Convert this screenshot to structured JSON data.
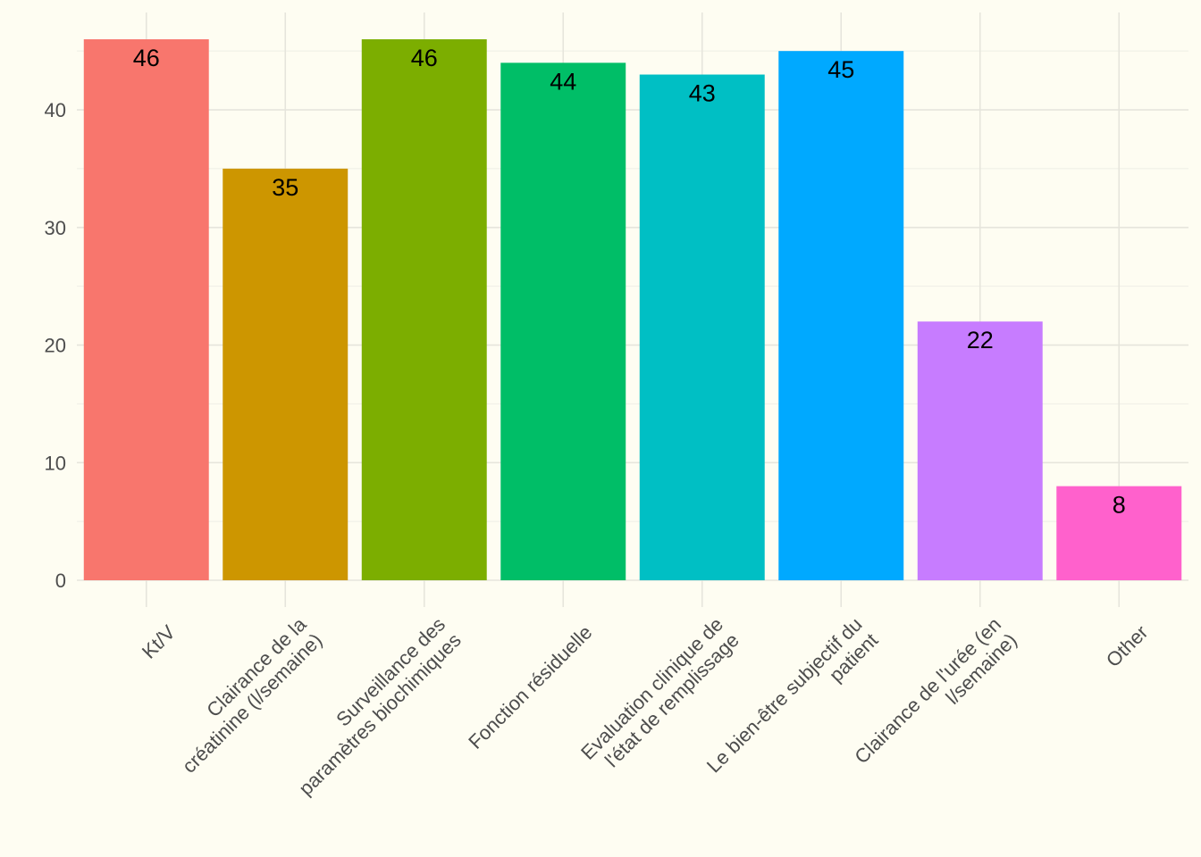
{
  "chart_data": {
    "type": "bar",
    "title": "",
    "xlabel": "",
    "ylabel": "",
    "ylim": [
      0,
      48
    ],
    "yticks": [
      0,
      10,
      20,
      30,
      40
    ],
    "grid": true,
    "legend": "none",
    "categories": [
      [
        "Kt/V"
      ],
      [
        "Clairance de la",
        "créatinine (l/semaine)"
      ],
      [
        "Surveillance des",
        "paramètres biochimiques"
      ],
      [
        "Fonction résiduelle"
      ],
      [
        "Evaluation clinique de",
        "l'état de remplissage"
      ],
      [
        "Le bien-être subjectif du",
        "patient"
      ],
      [
        "Clairance de l'urée (en",
        "l/semaine)"
      ],
      [
        "Other"
      ]
    ],
    "values": [
      46,
      35,
      46,
      44,
      43,
      45,
      22,
      8
    ],
    "colors": [
      "#F8766D",
      "#CD9600",
      "#7CAE00",
      "#00BE67",
      "#00BFC4",
      "#00A9FF",
      "#C77CFF",
      "#FF61CC"
    ]
  }
}
